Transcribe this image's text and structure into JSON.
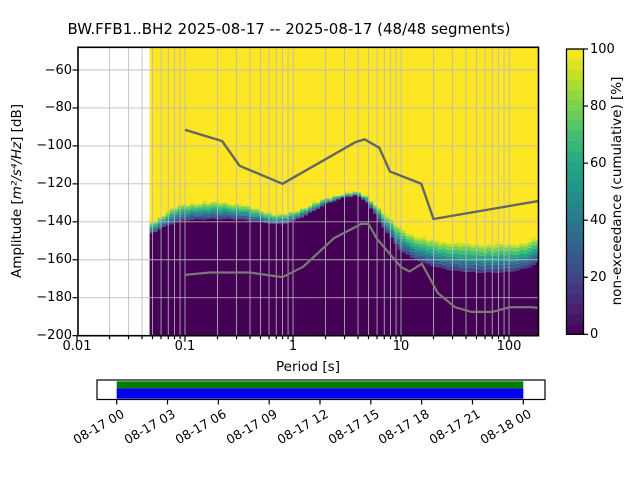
{
  "figure": {
    "title": "BW.FFB1..BH2   2025-08-17 -- 2025-08-17  (48/48 segments)"
  },
  "chart_data": {
    "type": "heatmap",
    "subtype": "ppsd-cumulative-spectrogram",
    "title": "BW.FFB1..BH2   2025-08-17 -- 2025-08-17  (48/48 segments)",
    "xlabel": "Period [s]",
    "ylabel": {
      "prefix": "Amplitude [",
      "math": "m²/s⁴/Hz",
      "suffix": "] [dB]"
    },
    "xscale": "log",
    "xlim": [
      0.01,
      189
    ],
    "ylim": [
      -200,
      -48
    ],
    "grid": true,
    "x_ticks": [
      {
        "p": 0.01,
        "label": "0.01"
      },
      {
        "p": 0.1,
        "label": "0.1"
      },
      {
        "p": 1,
        "label": "1"
      },
      {
        "p": 10,
        "label": "10"
      },
      {
        "p": 100,
        "label": "100"
      }
    ],
    "y_ticks": [
      {
        "db": -60,
        "label": "−60"
      },
      {
        "db": -80,
        "label": "−80"
      },
      {
        "db": -100,
        "label": "−100"
      },
      {
        "db": -120,
        "label": "−120"
      },
      {
        "db": -140,
        "label": "−140"
      },
      {
        "db": -160,
        "label": "−160"
      },
      {
        "db": -180,
        "label": "−180"
      },
      {
        "db": -200,
        "label": "−200"
      }
    ],
    "colorbar": {
      "label": "non-exceedance (cumulative) [%]",
      "ticks": [
        {
          "v": 0,
          "label": "0"
        },
        {
          "v": 20,
          "label": "20"
        },
        {
          "v": 40,
          "label": "40"
        },
        {
          "v": 60,
          "label": "60"
        },
        {
          "v": 80,
          "label": "80"
        },
        {
          "v": 100,
          "label": "100"
        }
      ],
      "steps": 28,
      "viridis_anchors": [
        [
          0.0,
          "#440154"
        ],
        [
          0.1,
          "#482475"
        ],
        [
          0.2,
          "#414487"
        ],
        [
          0.3,
          "#355f8d"
        ],
        [
          0.4,
          "#2a788e"
        ],
        [
          0.5,
          "#21918c"
        ],
        [
          0.6,
          "#22a884"
        ],
        [
          0.7,
          "#44bf70"
        ],
        [
          0.8,
          "#7ad151"
        ],
        [
          0.9,
          "#bddf26"
        ],
        [
          1.0,
          "#fde725"
        ]
      ]
    },
    "distribution": {
      "comment": "dB of the non-exceedance transition band vs period: db_top = bottom of 100% (yellow) region, db_bottom = top of 0% (dark purple) region",
      "periods": [
        0.047,
        0.056,
        0.068,
        0.082,
        0.1,
        0.14,
        0.22,
        0.33,
        0.5,
        0.75,
        1.0,
        1.4,
        2.0,
        2.8,
        3.8,
        4.8,
        6.0,
        7.5,
        9.5,
        12,
        16,
        22,
        32,
        48,
        70,
        100,
        140,
        189
      ],
      "db_top": [
        -141.0,
        -138.5,
        -135.0,
        -132.2,
        -131.0,
        -130.0,
        -129.8,
        -131.0,
        -134.0,
        -136.5,
        -135.0,
        -131.5,
        -128.0,
        -125.3,
        -124.2,
        -126.5,
        -131.5,
        -137.5,
        -143.0,
        -146.5,
        -149.0,
        -150.5,
        -151.5,
        -152.0,
        -152.2,
        -152.2,
        -151.3,
        -148.8
      ],
      "db_bottom": [
        -146.5,
        -144.5,
        -142.0,
        -140.2,
        -139.2,
        -138.6,
        -138.4,
        -138.8,
        -140.3,
        -141.5,
        -139.8,
        -135.8,
        -130.8,
        -127.6,
        -126.0,
        -129.5,
        -137.5,
        -146.0,
        -154.0,
        -158.5,
        -161.5,
        -164.0,
        -165.8,
        -166.6,
        -166.8,
        -166.3,
        -164.8,
        -161.3
      ],
      "band_stops": [
        [
          0.0,
          "#bddf26"
        ],
        [
          0.1,
          "#7ad151"
        ],
        [
          0.24,
          "#44bf70"
        ],
        [
          0.38,
          "#22a884"
        ],
        [
          0.5,
          "#21918c"
        ],
        [
          0.62,
          "#2a788e"
        ],
        [
          0.74,
          "#355f8d"
        ],
        [
          0.86,
          "#414487"
        ],
        [
          1.0,
          "#440154"
        ]
      ],
      "data_min_period": 0.047,
      "data_max_period": 189
    },
    "noise_models": {
      "nhnm": [
        [
          0.1,
          -91.5
        ],
        [
          0.22,
          -97.4
        ],
        [
          0.32,
          -110.5
        ],
        [
          0.8,
          -120.0
        ],
        [
          3.8,
          -98.0
        ],
        [
          4.6,
          -96.5
        ],
        [
          6.3,
          -101.0
        ],
        [
          7.9,
          -113.5
        ],
        [
          15.4,
          -120.0
        ],
        [
          20.0,
          -138.5
        ],
        [
          189.0,
          -129.0
        ]
      ],
      "nlnm": [
        [
          0.1,
          -168.0
        ],
        [
          0.17,
          -166.7
        ],
        [
          0.4,
          -166.7
        ],
        [
          0.8,
          -169.2
        ],
        [
          1.24,
          -163.7
        ],
        [
          2.4,
          -148.6
        ],
        [
          4.3,
          -141.1
        ],
        [
          5.0,
          -141.1
        ],
        [
          6.0,
          -149.0
        ],
        [
          10.0,
          -163.8
        ],
        [
          12.0,
          -166.2
        ],
        [
          15.6,
          -162.1
        ],
        [
          21.9,
          -177.5
        ],
        [
          31.6,
          -185.0
        ],
        [
          45.0,
          -187.5
        ],
        [
          70.0,
          -187.5
        ],
        [
          101.0,
          -185.0
        ],
        [
          154.0,
          -185.0
        ],
        [
          189.0,
          -185.3
        ]
      ]
    },
    "timeline": {
      "tick_labels": [
        "08-17 00",
        "08-17 03",
        "08-17 06",
        "08-17 09",
        "08-17 12",
        "08-17 15",
        "08-17 18",
        "08-17 21",
        "08-18 00"
      ],
      "coverage_color": "#008000",
      "data_extent_color": "#0000ee"
    }
  },
  "colors": {
    "background": "#ffffff",
    "cmap_top": "#fde725",
    "cmap_bottom": "#440154",
    "grid": "#b9b9c2",
    "nhnm_line": "#666666",
    "nlnm_line": "#7a7a7a",
    "frame": "#000000"
  }
}
